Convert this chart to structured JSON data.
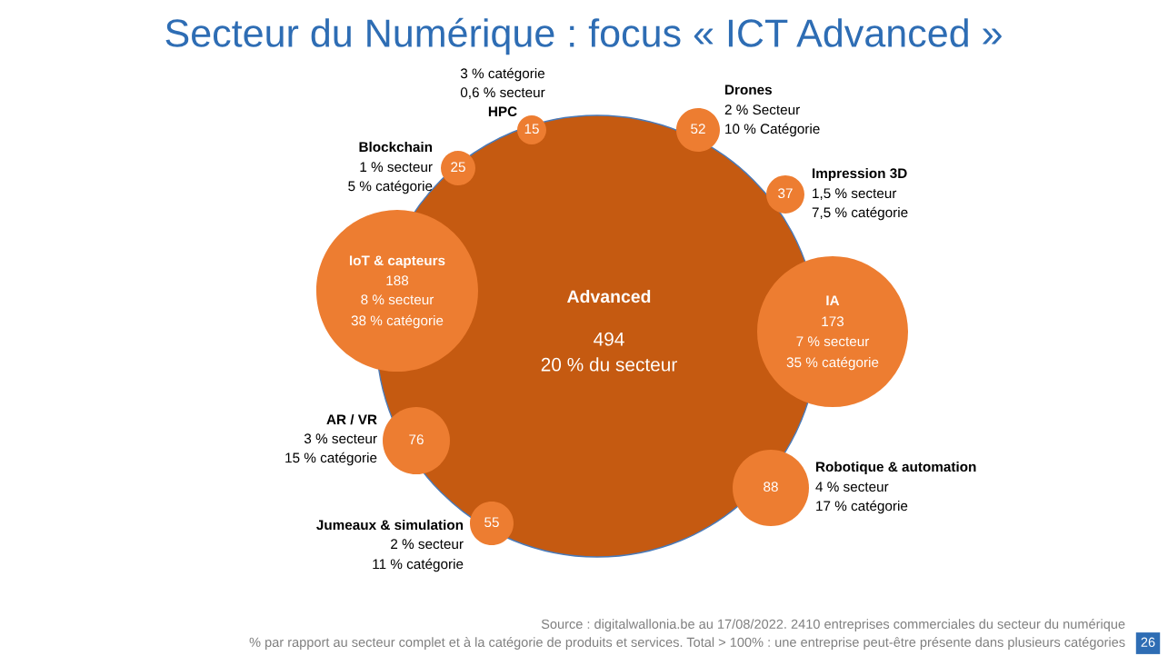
{
  "chart_data": {
    "type": "other",
    "title": "Secteur du Numérique : focus « ICT Advanced »",
    "categories": [
      "Advanced",
      "IoT & capteurs",
      "IA",
      "HPC",
      "Drones",
      "Impression 3D",
      "Robotique & automation",
      "Jumeaux & simulation",
      "AR / VR",
      "Blockchain"
    ],
    "series": [
      {
        "values": [
          494,
          188,
          173,
          15,
          52,
          37,
          88,
          55,
          76,
          25
        ],
        "colors": [
          "#c55a11",
          "#ed7d31",
          "#ed7d31",
          "#ed7d31",
          "#ed7d31",
          "#ed7d31",
          "#ed7d31",
          "#ed7d31",
          "#ed7d31",
          "#ed7d31"
        ]
      },
      {
        "values": [
          20,
          8,
          7,
          0.6,
          2,
          1.5,
          4,
          2,
          3,
          1
        ],
        "value_labels": [
          "20 % du secteur",
          "8 % secteur",
          "7 % secteur",
          "0,6 % secteur",
          "2 % Secteur",
          "1,5 % secteur",
          "4 % secteur",
          "2 % secteur",
          "3 % secteur",
          "1 % secteur"
        ]
      },
      {
        "values": [
          null,
          38,
          35,
          3,
          10,
          7.5,
          17,
          11,
          15,
          5
        ],
        "value_labels": [
          null,
          "38 % catégorie",
          "35 % catégorie",
          "3 % catégorie",
          "10 % Catégorie",
          "7,5 % catégorie",
          "17 % catégorie",
          "11 % catégorie",
          "15 % catégorie",
          "5 % catégorie"
        ]
      }
    ],
    "data_labels": true,
    "annotations": [
      "Source : digitalwallonia.be au 17/08/2022. 2410 entreprises commerciales du secteur du numérique",
      "% par rapport au secteur complet et à la catégorie de produits et services. Total > 100% : une entreprise peut-être présente dans plusieurs catégories",
      "26"
    ]
  }
}
